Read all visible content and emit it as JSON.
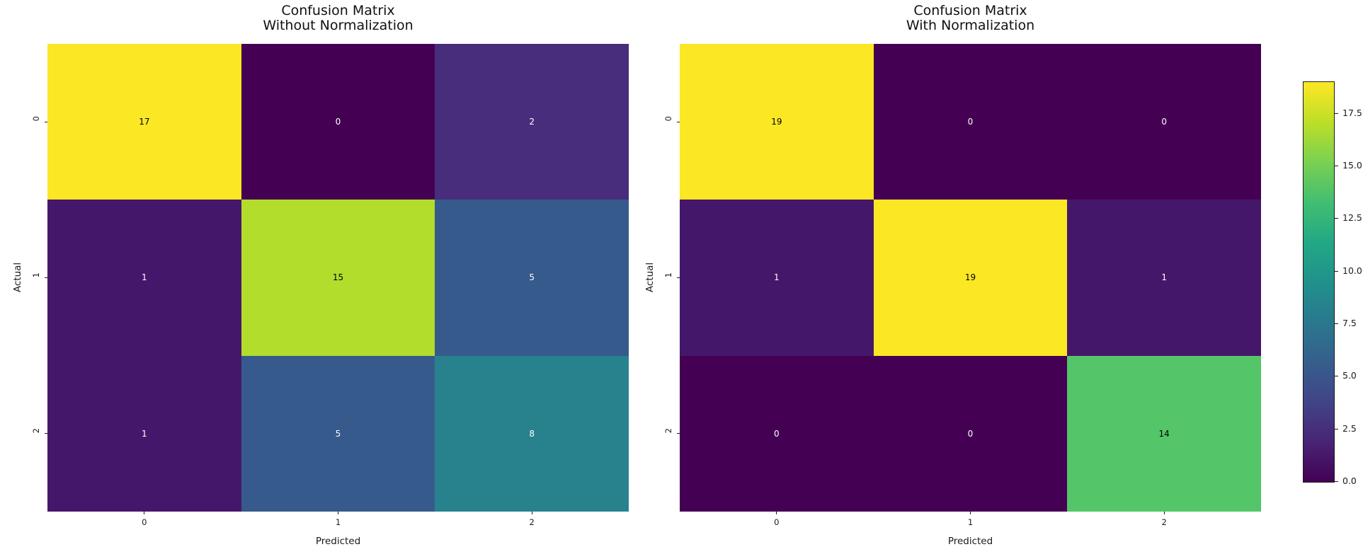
{
  "figure": {
    "background": "#ffffff",
    "colormap": "viridis",
    "text_color": "#1a1a1a"
  },
  "chart_data": [
    {
      "type": "heatmap",
      "title": "Confusion Matrix\nWithout Normalization",
      "xlabel": "Predicted",
      "ylabel": "Actual",
      "x_tick_labels": [
        "0",
        "1",
        "2"
      ],
      "y_tick_labels": [
        "0",
        "1",
        "2"
      ],
      "values": [
        [
          17,
          0,
          2
        ],
        [
          1,
          15,
          5
        ],
        [
          1,
          5,
          8
        ]
      ],
      "cell_colors": [
        [
          "#fce724",
          "#440154",
          "#472d7b"
        ],
        [
          "#45176a",
          "#b2dd2c",
          "#375a8c"
        ],
        [
          "#45176a",
          "#375a8c",
          "#27828e"
        ]
      ],
      "value_range": [
        0,
        17
      ],
      "grid": false
    },
    {
      "type": "heatmap",
      "title": "Confusion Matrix\nWith Normalization",
      "xlabel": "Predicted",
      "ylabel": "Actual",
      "x_tick_labels": [
        "0",
        "1",
        "2"
      ],
      "y_tick_labels": [
        "0",
        "1",
        "2"
      ],
      "values": [
        [
          19,
          0,
          0
        ],
        [
          1,
          19,
          1
        ],
        [
          0,
          0,
          14
        ]
      ],
      "cell_colors": [
        [
          "#fce724",
          "#440154",
          "#440154"
        ],
        [
          "#45176a",
          "#fce724",
          "#45176a"
        ],
        [
          "#440154",
          "#440154",
          "#54c568"
        ]
      ],
      "value_range": [
        0,
        19
      ],
      "grid": false
    },
    {
      "type": "colorbar",
      "orientation": "vertical",
      "tick_labels": [
        "17.5",
        "15.0",
        "12.5",
        "10.0",
        "7.5",
        "5.0",
        "2.5",
        "0.0"
      ],
      "tick_values": [
        17.5,
        15.0,
        12.5,
        10.0,
        7.5,
        5.0,
        2.5,
        0.0
      ],
      "range": [
        0,
        19
      ],
      "gradient_stops": [
        {
          "pos": 0.0,
          "color": "#440154"
        },
        {
          "pos": 0.1,
          "color": "#482475"
        },
        {
          "pos": 0.2,
          "color": "#414487"
        },
        {
          "pos": 0.3,
          "color": "#355f8d"
        },
        {
          "pos": 0.4,
          "color": "#2a788e"
        },
        {
          "pos": 0.5,
          "color": "#21918c"
        },
        {
          "pos": 0.6,
          "color": "#22a884"
        },
        {
          "pos": 0.7,
          "color": "#42be71"
        },
        {
          "pos": 0.8,
          "color": "#7ad151"
        },
        {
          "pos": 0.9,
          "color": "#bddf26"
        },
        {
          "pos": 1.0,
          "color": "#fde725"
        }
      ]
    }
  ]
}
